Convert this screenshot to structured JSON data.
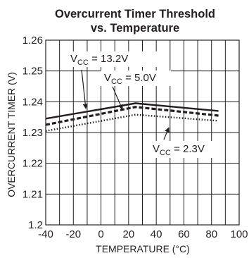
{
  "chart_data": {
    "type": "line",
    "title": "Overcurrent Timer Threshold",
    "subtitle": "vs. Temperature",
    "xlabel": "TEMPERATURE (°C)",
    "ylabel": "OVERCURRENT TIMER (V)",
    "xlim": [
      -40,
      100
    ],
    "ylim": [
      1.2,
      1.26
    ],
    "xticks": [
      "-40",
      "-20",
      "0",
      "20",
      "40",
      "60",
      "80",
      "100"
    ],
    "yticks": [
      "1.2",
      "1.21",
      "1.22",
      "1.23",
      "1.24",
      "1.25",
      "1.26"
    ],
    "grid": true,
    "series": [
      {
        "name": "VCC = 13.2V",
        "style": "solid",
        "x": [
          -40,
          25,
          85
        ],
        "y": [
          1.2345,
          1.2395,
          1.237
        ]
      },
      {
        "name": "VCC = 5.0V",
        "style": "dashed",
        "x": [
          -40,
          25,
          85
        ],
        "y": [
          1.2325,
          1.2383,
          1.2355
        ]
      },
      {
        "name": "VCC = 2.3V",
        "style": "dotted",
        "x": [
          -40,
          25,
          85
        ],
        "y": [
          1.2305,
          1.2358,
          1.2338
        ]
      }
    ],
    "annotations": [
      {
        "main": "V",
        "sub": "CC",
        "rest": " = 13.2V"
      },
      {
        "main": "V",
        "sub": "CC",
        "rest": " = 5.0V"
      },
      {
        "main": "V",
        "sub": "CC",
        "rest": " = 2.3V"
      }
    ]
  }
}
